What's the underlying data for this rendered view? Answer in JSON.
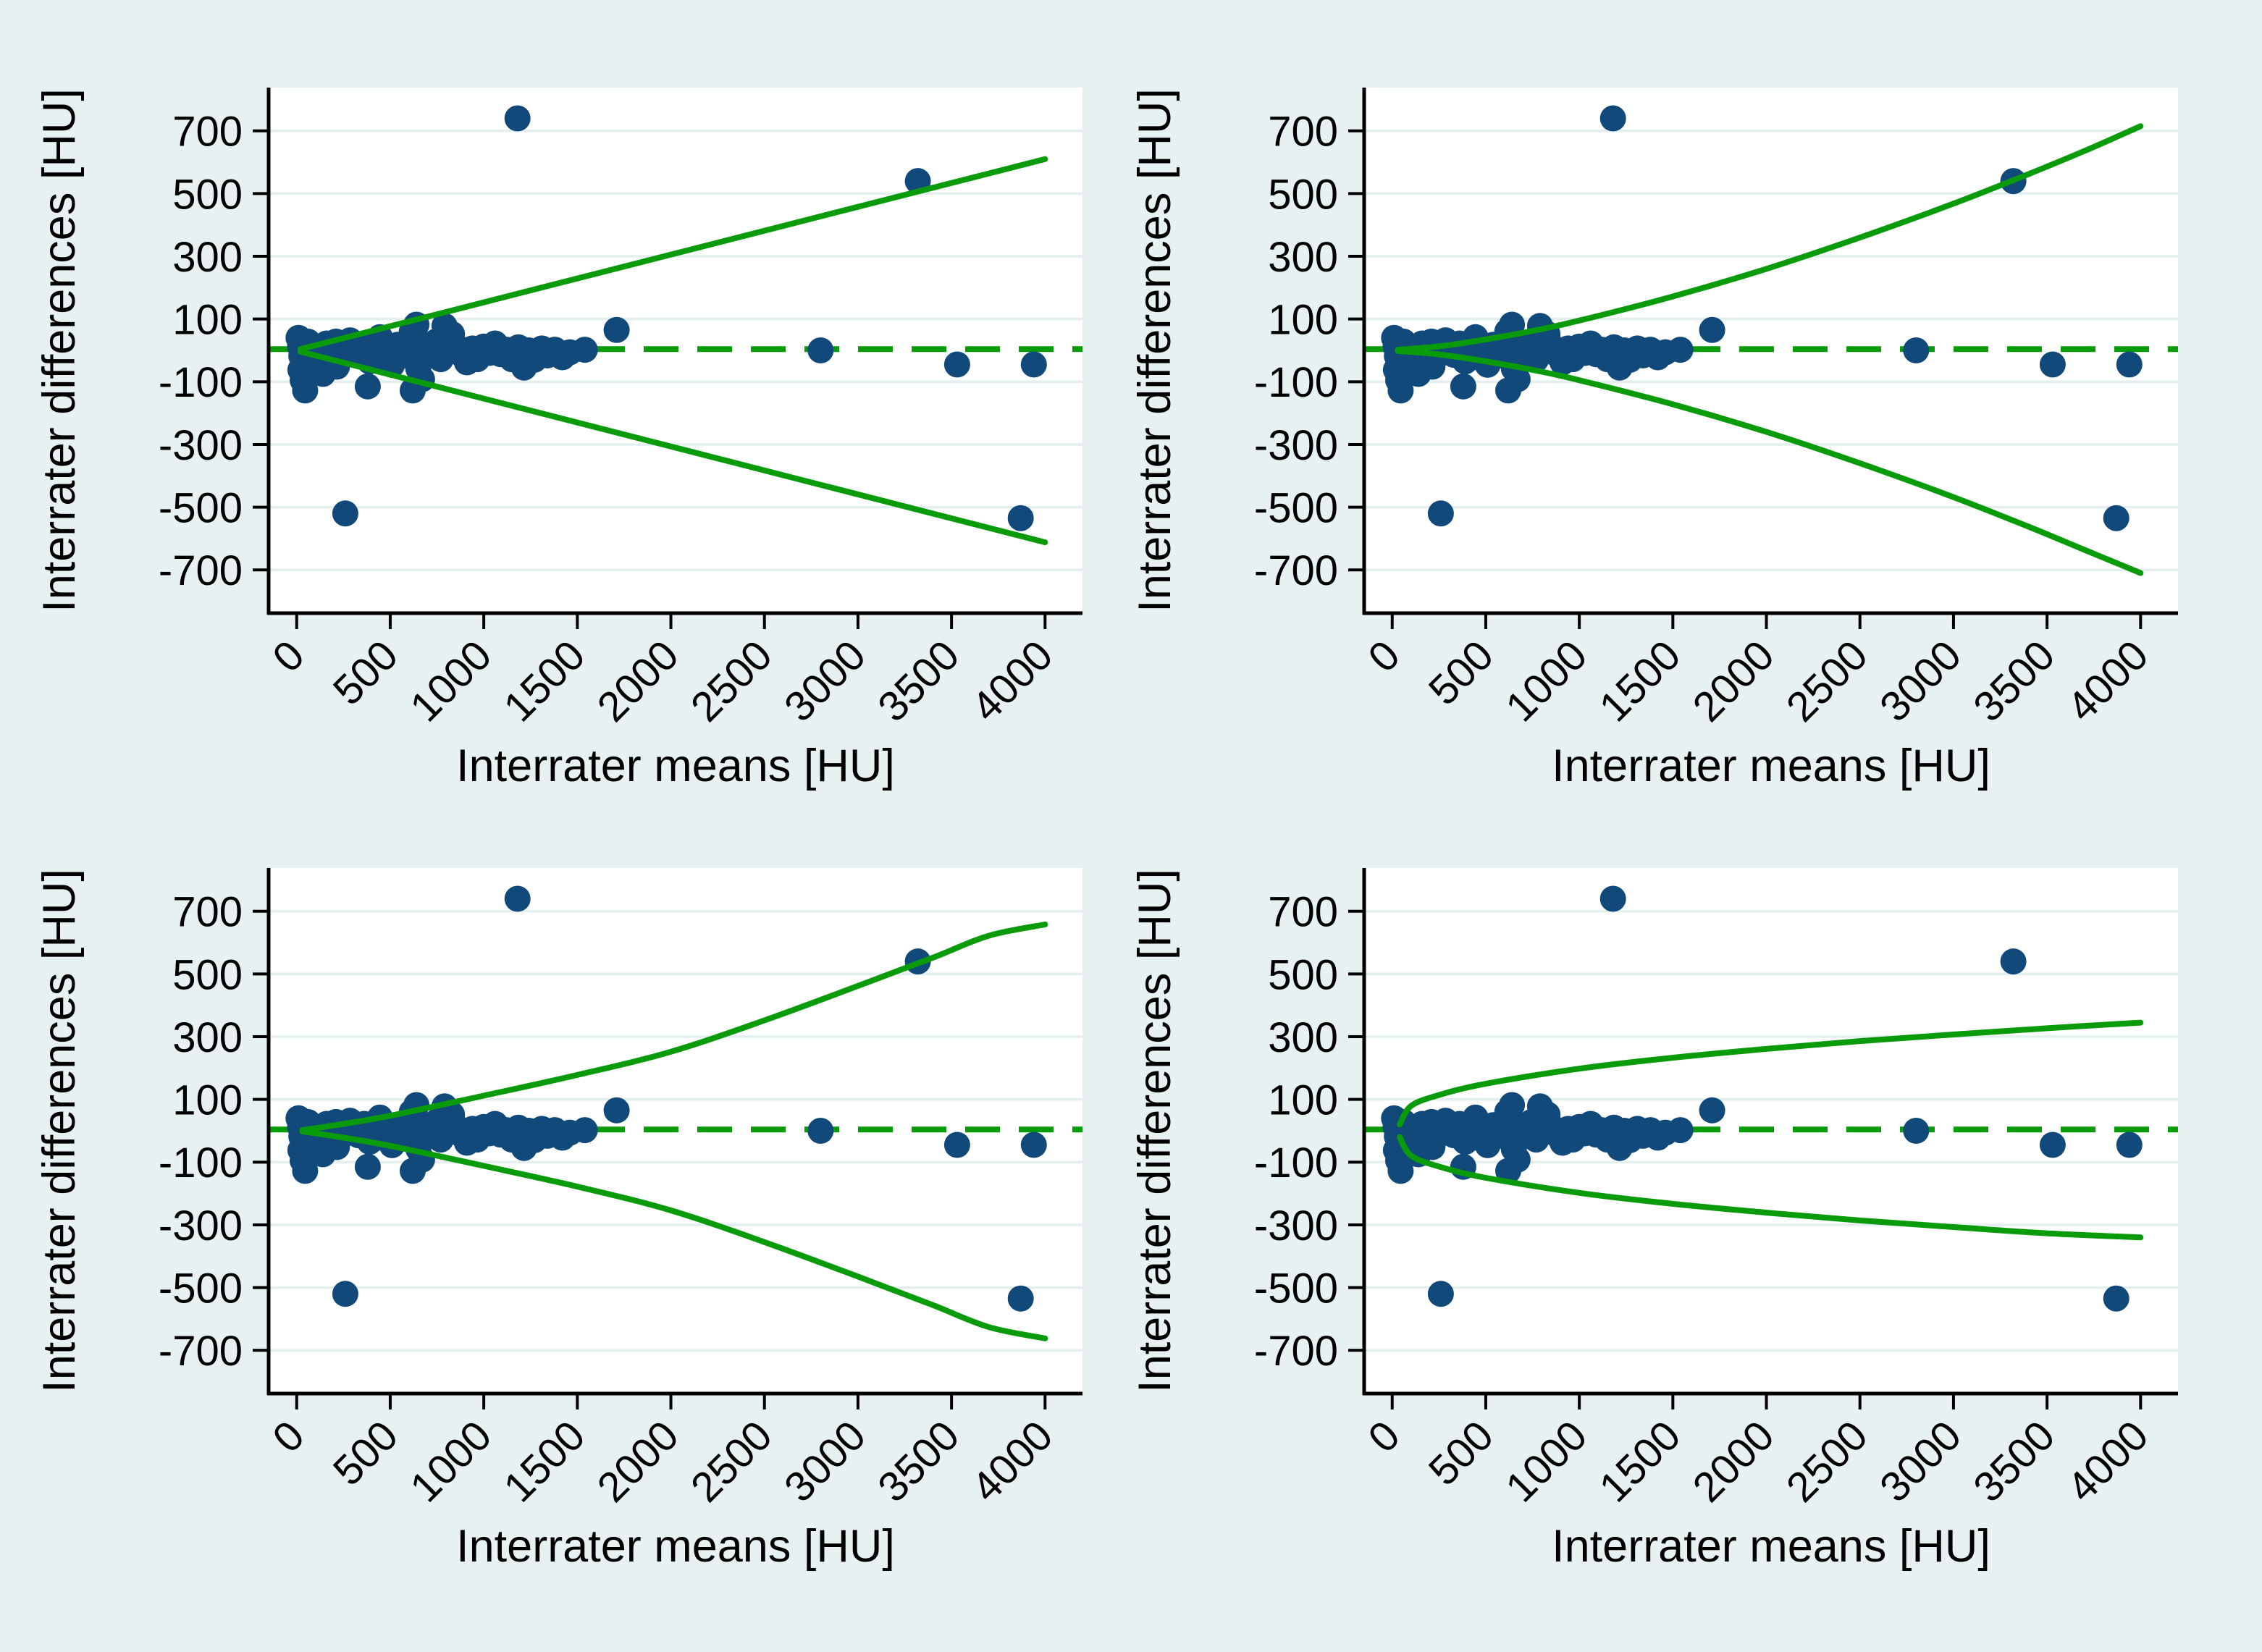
{
  "page": {
    "background": "#e7f1f2",
    "plot_background": "#ffffff"
  },
  "colors": {
    "marker": "#11497b",
    "loa_line": "#0a9b0a",
    "mean_line": "#0a9b0a",
    "axis": "#000000",
    "grid": "#e3eeef",
    "text": "#000000"
  },
  "chart_data": {
    "type": "scatter",
    "layout": "2x2-grid-bland-altman",
    "x_label": "Interrater means [HU]",
    "y_label": "Interrater differences [HU]",
    "x_ticks": [
      0,
      500,
      1000,
      1500,
      2000,
      2500,
      3000,
      3500,
      4000
    ],
    "y_ticks": [
      700,
      500,
      300,
      100,
      -100,
      -300,
      -500,
      -700
    ],
    "x_domain": [
      -150,
      4200
    ],
    "y_domain": [
      -838,
      838
    ],
    "grid": "horizontal-only",
    "mean_difference_line": 4,
    "points": [
      [
        10,
        40
      ],
      [
        18,
        12
      ],
      [
        25,
        -18
      ],
      [
        20,
        -62
      ],
      [
        32,
        -95
      ],
      [
        45,
        -128
      ],
      [
        60,
        28
      ],
      [
        72,
        -4
      ],
      [
        90,
        -42
      ],
      [
        110,
        12
      ],
      [
        140,
        -75
      ],
      [
        160,
        22
      ],
      [
        185,
        -6
      ],
      [
        210,
        28
      ],
      [
        215,
        -52
      ],
      [
        235,
        -20
      ],
      [
        255,
        8
      ],
      [
        285,
        32
      ],
      [
        300,
        12
      ],
      [
        330,
        -14
      ],
      [
        360,
        22
      ],
      [
        380,
        -115
      ],
      [
        390,
        -35
      ],
      [
        420,
        -24
      ],
      [
        445,
        42
      ],
      [
        460,
        10
      ],
      [
        480,
        -8
      ],
      [
        510,
        -46
      ],
      [
        540,
        18
      ],
      [
        570,
        6
      ],
      [
        600,
        -18
      ],
      [
        615,
        60
      ],
      [
        620,
        -128
      ],
      [
        640,
        82
      ],
      [
        650,
        -58
      ],
      [
        670,
        -92
      ],
      [
        700,
        15
      ],
      [
        720,
        -5
      ],
      [
        745,
        28
      ],
      [
        770,
        -28
      ],
      [
        790,
        78
      ],
      [
        830,
        52
      ],
      [
        850,
        14
      ],
      [
        880,
        -12
      ],
      [
        910,
        -38
      ],
      [
        940,
        6
      ],
      [
        965,
        -28
      ],
      [
        1000,
        12
      ],
      [
        1030,
        -8
      ],
      [
        1060,
        22
      ],
      [
        1090,
        -12
      ],
      [
        1120,
        2
      ],
      [
        1150,
        -28
      ],
      [
        1185,
        10
      ],
      [
        1215,
        -55
      ],
      [
        1240,
        0
      ],
      [
        1270,
        -30
      ],
      [
        1310,
        6
      ],
      [
        1340,
        -16
      ],
      [
        1380,
        2
      ],
      [
        1420,
        -22
      ],
      [
        1460,
        -6
      ],
      [
        1540,
        2
      ],
      [
        260,
        -520
      ],
      [
        1180,
        740
      ],
      [
        1710,
        65
      ],
      [
        2800,
        0
      ],
      [
        3320,
        540
      ],
      [
        3530,
        -45
      ],
      [
        3870,
        -535
      ],
      [
        3940,
        -45
      ]
    ],
    "panels": [
      {
        "name": "top-left",
        "loa_shape": "linear",
        "upper": [
          [
            20,
            4
          ],
          [
            4000,
            610
          ]
        ],
        "lower": [
          [
            20,
            -4
          ],
          [
            4000,
            -612
          ]
        ]
      },
      {
        "name": "top-right",
        "loa_shape": "power-convex",
        "upper": [
          [
            30,
            2
          ],
          [
            250,
            13
          ],
          [
            500,
            35
          ],
          [
            750,
            62
          ],
          [
            1000,
            95
          ],
          [
            1500,
            172
          ],
          [
            2000,
            260
          ],
          [
            2500,
            360
          ],
          [
            3000,
            468
          ],
          [
            3400,
            562
          ],
          [
            3700,
            636
          ],
          [
            4000,
            715
          ]
        ],
        "lower": [
          [
            30,
            -2
          ],
          [
            250,
            -13
          ],
          [
            500,
            -35
          ],
          [
            750,
            -62
          ],
          [
            1000,
            -95
          ],
          [
            1500,
            -172
          ],
          [
            2000,
            -260
          ],
          [
            2500,
            -360
          ],
          [
            3000,
            -468
          ],
          [
            3400,
            -562
          ],
          [
            3700,
            -636
          ],
          [
            4000,
            -710
          ]
        ]
      },
      {
        "name": "bottom-left",
        "loa_shape": "s-curve",
        "upper": [
          [
            30,
            2
          ],
          [
            250,
            22
          ],
          [
            500,
            48
          ],
          [
            1000,
            112
          ],
          [
            1500,
            178
          ],
          [
            2000,
            252
          ],
          [
            2500,
            352
          ],
          [
            3000,
            462
          ],
          [
            3400,
            552
          ],
          [
            3700,
            622
          ],
          [
            4000,
            658
          ]
        ],
        "lower": [
          [
            30,
            -2
          ],
          [
            250,
            -22
          ],
          [
            500,
            -48
          ],
          [
            1000,
            -112
          ],
          [
            1500,
            -178
          ],
          [
            2000,
            -254
          ],
          [
            2500,
            -355
          ],
          [
            3000,
            -465
          ],
          [
            3400,
            -556
          ],
          [
            3700,
            -626
          ],
          [
            4000,
            -662
          ]
        ]
      },
      {
        "name": "bottom-right",
        "loa_shape": "sqrt-concave",
        "upper": [
          [
            40,
            20
          ],
          [
            100,
            79
          ],
          [
            250,
            114
          ],
          [
            500,
            150
          ],
          [
            1000,
            198
          ],
          [
            1500,
            233
          ],
          [
            2000,
            261
          ],
          [
            2500,
            286
          ],
          [
            3000,
            307
          ],
          [
            3500,
            327
          ],
          [
            4000,
            345
          ]
        ],
        "lower": [
          [
            40,
            -20
          ],
          [
            100,
            -79
          ],
          [
            250,
            -114
          ],
          [
            500,
            -150
          ],
          [
            1000,
            -198
          ],
          [
            1500,
            -233
          ],
          [
            2000,
            -261
          ],
          [
            2500,
            -286
          ],
          [
            3000,
            -307
          ],
          [
            3500,
            -327
          ],
          [
            4000,
            -340
          ]
        ]
      }
    ]
  }
}
